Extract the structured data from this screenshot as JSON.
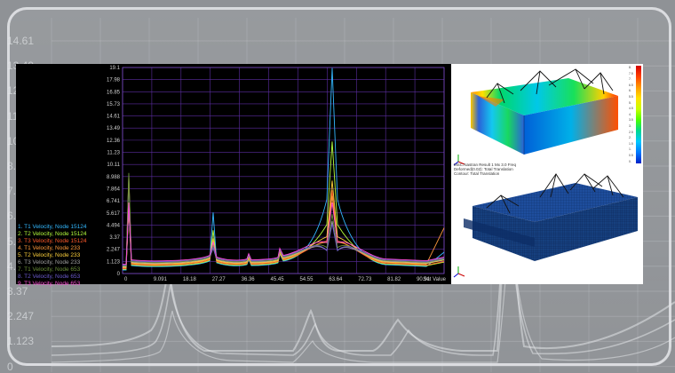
{
  "background": {
    "y_ticks": [
      "14.61",
      "13.49",
      "12.36",
      "11.23",
      "10.11",
      "8.988",
      "7.864",
      "6.741",
      "5.617",
      "4.494",
      "3.37",
      "2.247",
      "1.123",
      "0"
    ]
  },
  "plot": {
    "y_ticks": [
      "19.1",
      "17.98",
      "16.85",
      "15.73",
      "14.61",
      "13.49",
      "12.36",
      "11.23",
      "10.11",
      "8.988",
      "7.864",
      "6.741",
      "5.617",
      "4.494",
      "3.37",
      "2.247",
      "1.123",
      "0"
    ],
    "x_ticks": [
      "0",
      "9.091",
      "18.18",
      "27.27",
      "36.36",
      "45.45",
      "54.55",
      "63.64",
      "72.73",
      "81.82",
      "90.91"
    ],
    "x_axis_label": "Set Value",
    "legend": [
      {
        "label": "1. T1 Velocity, Node 15124",
        "color": "#33b8ff"
      },
      {
        "label": "2. T2 Velocity, Node 15124",
        "color": "#b6ff3c"
      },
      {
        "label": "3. T3 Velocity, Node 15124",
        "color": "#ff5a2a"
      },
      {
        "label": "4. T1 Velocity, Node 233",
        "color": "#ff9a3c"
      },
      {
        "label": "5. T2 Velocity, Node 233",
        "color": "#ffd23c"
      },
      {
        "label": "6. T3 Velocity, Node 233",
        "color": "#a0a0a0"
      },
      {
        "label": "7. T1 Velocity, Node 653",
        "color": "#6b8f3a"
      },
      {
        "label": "8. T2 Velocity, Node 653",
        "color": "#6a5acd"
      },
      {
        "label": "9. T3 Velocity, Node 653",
        "color": "#ff4fd8"
      }
    ]
  },
  "fea": {
    "caption_lines": [
      "MSC.Nastran Result 1 Mx 3.0 Freq",
      "Deformed(0.02): Total Translation",
      "Contour: Total Translation"
    ],
    "colorbar_labels": [
      "8.",
      "7.5",
      "7.",
      "6.5",
      "6.",
      "5.5",
      "5.",
      "4.5",
      "4.",
      "3.5",
      "3.",
      "2.5",
      "2.",
      "1.5",
      "1.",
      "0.5",
      "0."
    ]
  }
}
